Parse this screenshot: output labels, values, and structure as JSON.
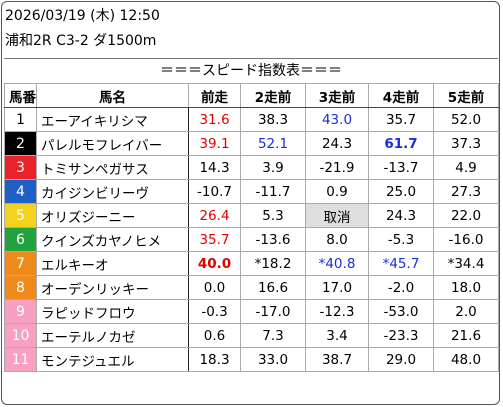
{
  "header": {
    "datetime": "2026/03/19 (木) 12:50",
    "race": "浦和2R C3-2 ダ1500m",
    "caption": "＝＝＝スピード指数表＝＝＝"
  },
  "columns": [
    "馬番",
    "馬名",
    "前走",
    "2走前",
    "3走前",
    "4走前",
    "5走前"
  ],
  "rows": [
    {
      "num": "1",
      "name": "エーアイキリシマ",
      "vals": [
        "31.6",
        "38.3",
        "43.0",
        "35.7",
        "52.0"
      ],
      "styles": [
        "red",
        "",
        "blue",
        "",
        ""
      ]
    },
    {
      "num": "2",
      "name": "パレルモフレイバー",
      "vals": [
        "39.1",
        "52.1",
        "24.3",
        "61.7",
        "37.3"
      ],
      "styles": [
        "red",
        "blue",
        "",
        "blueb",
        ""
      ]
    },
    {
      "num": "3",
      "name": "トミサンペガサス",
      "vals": [
        "14.3",
        "3.9",
        "-21.9",
        "-13.7",
        "4.9"
      ],
      "styles": [
        "",
        "",
        "",
        "",
        ""
      ]
    },
    {
      "num": "4",
      "name": "カイジンビリーヴ",
      "vals": [
        "-10.7",
        "-11.7",
        "0.9",
        "25.0",
        "27.3"
      ],
      "styles": [
        "",
        "",
        "",
        "",
        ""
      ]
    },
    {
      "num": "5",
      "name": "オリズジーニー",
      "vals": [
        "26.4",
        "5.3",
        "取消",
        "24.3",
        "22.0"
      ],
      "styles": [
        "red",
        "",
        "cancel",
        "",
        ""
      ]
    },
    {
      "num": "6",
      "name": "クインズカヤノヒメ",
      "vals": [
        "35.7",
        "-13.6",
        "8.0",
        "-5.3",
        "-16.0"
      ],
      "styles": [
        "red",
        "",
        "",
        "",
        ""
      ]
    },
    {
      "num": "7",
      "name": "エルキーオ",
      "vals": [
        "40.0",
        "*18.2",
        "*40.8",
        "*45.7",
        "*34.4"
      ],
      "styles": [
        "redb",
        "",
        "blue",
        "blue",
        ""
      ]
    },
    {
      "num": "8",
      "name": "オーデンリッキー",
      "vals": [
        "0.0",
        "16.6",
        "17.0",
        "-2.0",
        "18.0"
      ],
      "styles": [
        "",
        "",
        "",
        "",
        ""
      ]
    },
    {
      "num": "9",
      "name": "ラピッドフロウ",
      "vals": [
        "-0.3",
        "-17.0",
        "-12.3",
        "-53.0",
        "2.0"
      ],
      "styles": [
        "",
        "",
        "",
        "",
        ""
      ]
    },
    {
      "num": "10",
      "name": "エーテルノカゼ",
      "vals": [
        "0.6",
        "7.3",
        "3.4",
        "-23.3",
        "21.6"
      ],
      "styles": [
        "",
        "",
        "",
        "",
        ""
      ]
    },
    {
      "num": "11",
      "name": "モンテジュエル",
      "vals": [
        "18.3",
        "33.0",
        "38.7",
        "29.0",
        "48.0"
      ],
      "styles": [
        "",
        "",
        "",
        "",
        ""
      ]
    }
  ],
  "colors": {
    "frame_colors": [
      "#ffffff",
      "#000000",
      "#e8232b",
      "#1f5fc8",
      "#f2d21c",
      "#22a33f",
      "#f08a1a",
      "#f7a0c1"
    ],
    "red": "#e00000",
    "blue": "#1a2dd8",
    "cancel_bg": "#dedede"
  }
}
